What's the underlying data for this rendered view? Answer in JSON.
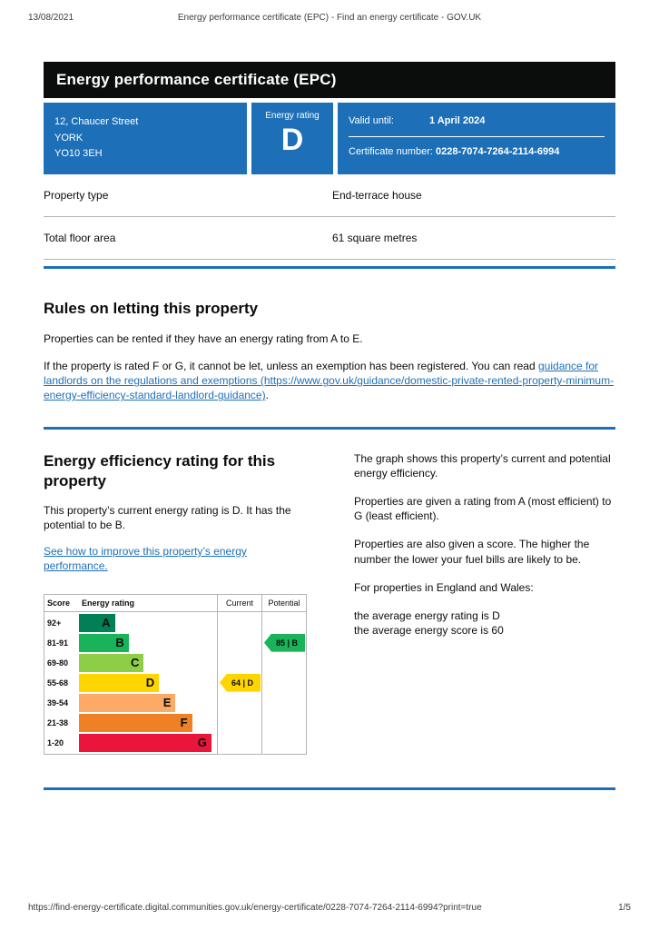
{
  "print_header": {
    "date": "13/08/2021",
    "title": "Energy performance certificate (EPC) - Find an energy certificate - GOV.UK"
  },
  "banner": {
    "title": "Energy performance certificate (EPC)"
  },
  "summary_panel": {
    "address_lines": [
      "12, Chaucer Street",
      "YORK",
      "YO10 3EH"
    ],
    "energy_rating_label": "Energy rating",
    "energy_rating": "D",
    "valid_until_label": "Valid until:",
    "valid_until_value": "1 April 2024",
    "certificate_number_label": "Certificate number:",
    "certificate_number_value": "0228-7074-7264-2114-6994"
  },
  "property_details": {
    "rows": [
      {
        "label": "Property type",
        "value": "End-terrace house"
      },
      {
        "label": "Total floor area",
        "value": "61 square metres"
      }
    ]
  },
  "letting_rules": {
    "heading": "Rules on letting this property",
    "para1": "Properties can be rented if they have an energy rating from A to E.",
    "para2_before": "If the property is rated F or G, it cannot be let, unless an exemption has been registered. You can read ",
    "link_text": "guidance for landlords on the regulations and exemptions (https://www.gov.uk/guidance/domestic-private-rented-property-minimum-energy-efficiency-standard-landlord-guidance)",
    "para2_after": "."
  },
  "efficiency_section": {
    "heading": "Energy efficiency rating for this property",
    "para1": "This property’s current energy rating is D. It has the potential to be B.",
    "improve_link": "See how to improve this property’s energy performance.",
    "right_paragraphs": [
      "The graph shows this property’s current and potential energy efficiency.",
      "Properties are given a rating from A (most efficient) to G (least efficient).",
      "Properties are also given a score. The higher the number the lower your fuel bills are likely to be.",
      "For properties in England and Wales:"
    ],
    "average_rating_line": "the average energy rating is D",
    "average_score_line": "the average energy score is 60"
  },
  "chart_data": {
    "type": "bar",
    "title": "Energy efficiency rating bands",
    "columns": [
      "Score",
      "Energy rating",
      "Current",
      "Potential"
    ],
    "bands": [
      {
        "score": "92+",
        "letter": "A",
        "color": "#008054",
        "width_pct": 26
      },
      {
        "score": "81-91",
        "letter": "B",
        "color": "#19b459",
        "width_pct": 36
      },
      {
        "score": "69-80",
        "letter": "C",
        "color": "#8dce46",
        "width_pct": 47
      },
      {
        "score": "55-68",
        "letter": "D",
        "color": "#ffd500",
        "width_pct": 58
      },
      {
        "score": "39-54",
        "letter": "E",
        "color": "#fcaa65",
        "width_pct": 70
      },
      {
        "score": "21-38",
        "letter": "F",
        "color": "#ef8023",
        "width_pct": 82
      },
      {
        "score": "1-20",
        "letter": "G",
        "color": "#e9153b",
        "width_pct": 96
      }
    ],
    "current": {
      "score": 64,
      "letter": "D",
      "label": "64 | D",
      "color": "#ffd500",
      "band_index": 3
    },
    "potential": {
      "score": 85,
      "letter": "B",
      "label": "85 | B",
      "color": "#19b459",
      "band_index": 1
    }
  },
  "page_footer": {
    "url": "https://find-energy-certificate.digital.communities.gov.uk/energy-certificate/0228-7074-7264-2114-6994?print=true",
    "page_number": "1/5"
  }
}
